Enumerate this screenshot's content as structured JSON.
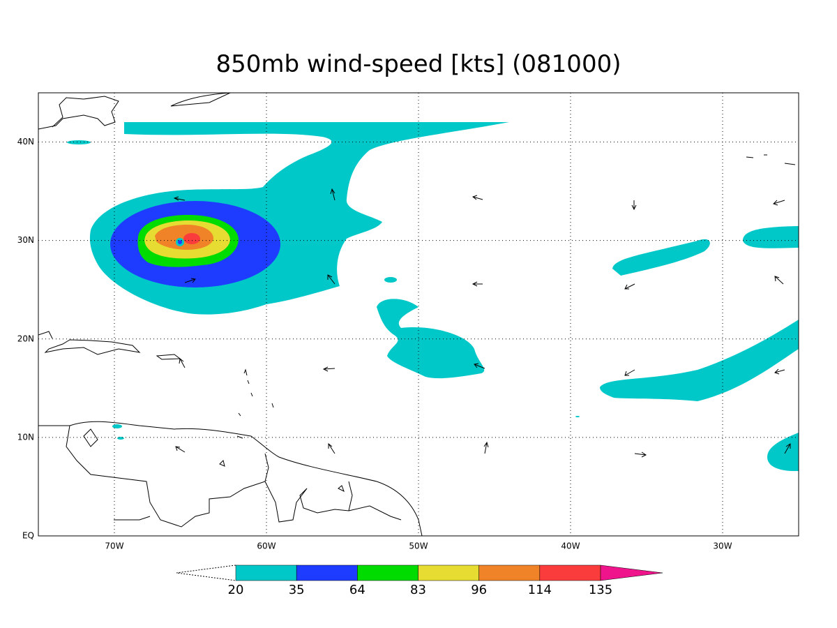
{
  "map": {
    "title": "850mb wind-speed [kts] (081000)",
    "xlim": [
      -75,
      -25
    ],
    "ylim": [
      0,
      45
    ],
    "xticks": [
      {
        "value": -70,
        "label": "70W"
      },
      {
        "value": -60,
        "label": "60W"
      },
      {
        "value": -50,
        "label": "50W"
      },
      {
        "value": -40,
        "label": "40W"
      },
      {
        "value": -30,
        "label": "30W"
      }
    ],
    "yticks": [
      {
        "value": 0,
        "label": "EQ"
      },
      {
        "value": 10,
        "label": "10N"
      },
      {
        "value": 20,
        "label": "20N"
      },
      {
        "value": 30,
        "label": "30N"
      },
      {
        "value": 40,
        "label": "40N"
      }
    ],
    "grid": true,
    "colorbar": {
      "levels": [
        20,
        35,
        64,
        83,
        96,
        114,
        135
      ],
      "colors": [
        "#00c8c8",
        "#1e3cff",
        "#00dc00",
        "#e6dc32",
        "#f08228",
        "#fa3c3c",
        "#f0148c"
      ]
    }
  }
}
